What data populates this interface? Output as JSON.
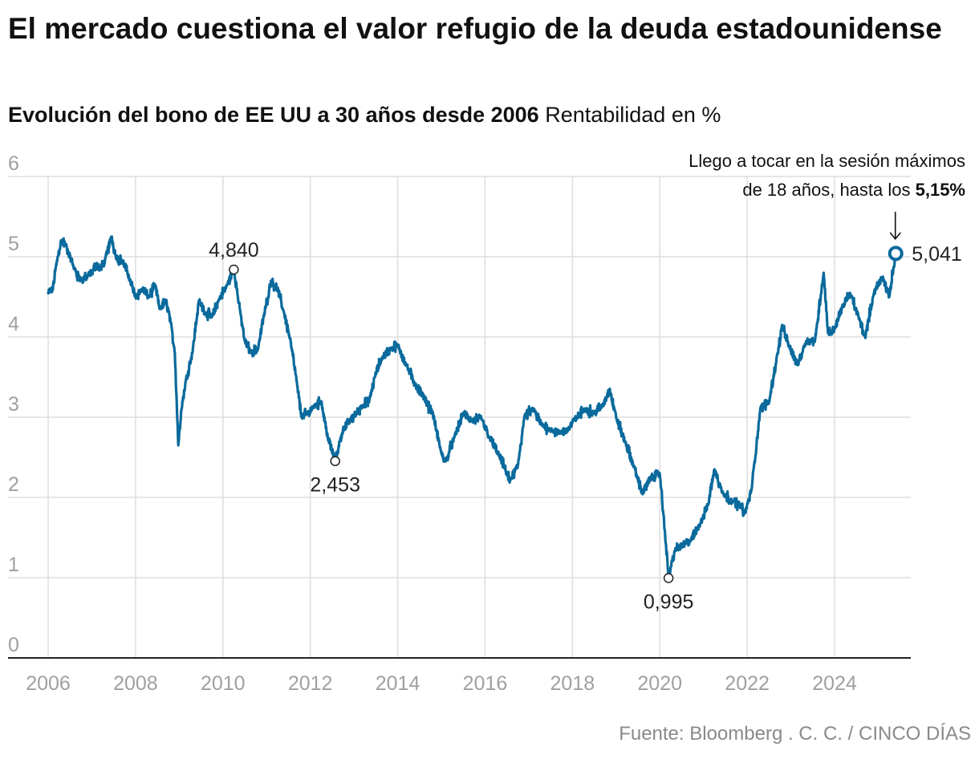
{
  "header": {
    "title": "El mercado cuestiona el valor refugio de la deuda estadounidense",
    "subtitle_bold": "Evolución del bono de EE UU a 30 años desde 2006",
    "subtitle_regular": "Rentabilidad en %"
  },
  "footer": {
    "source": "Fuente: Bloomberg . C. C. / CINCO DÍAS"
  },
  "colors": {
    "line": "#0a6a9c",
    "grid": "#dddddd",
    "axis": "#222222"
  },
  "chart_data": {
    "type": "line",
    "title": "Evolución del bono de EE UU a 30 años desde 2006",
    "ylabel": "Rentabilidad en %",
    "xlabel": "",
    "xlim": [
      2006,
      2025.8
    ],
    "ylim": [
      0,
      6
    ],
    "x_ticks": [
      2006,
      2008,
      2010,
      2012,
      2014,
      2016,
      2018,
      2020,
      2022,
      2024
    ],
    "x_tick_labels": [
      "2006",
      "2008",
      "2010",
      "2012",
      "2014",
      "2016",
      "2018",
      "2020",
      "2022",
      "2024"
    ],
    "y_ticks": [
      0,
      1,
      2,
      3,
      4,
      5,
      6
    ],
    "y_tick_labels": [
      "0",
      "1",
      "2",
      "3",
      "4",
      "5",
      "6"
    ],
    "grid": true,
    "series": [
      {
        "name": "Bono EE UU 30 años",
        "x": [
          2006.0,
          2006.1,
          2006.2,
          2006.3,
          2006.4,
          2006.5,
          2006.6,
          2006.75,
          2006.9,
          2007.0,
          2007.1,
          2007.2,
          2007.3,
          2007.45,
          2007.55,
          2007.7,
          2007.85,
          2008.0,
          2008.15,
          2008.3,
          2008.45,
          2008.55,
          2008.7,
          2008.8,
          2008.9,
          2008.98,
          2009.05,
          2009.15,
          2009.3,
          2009.45,
          2009.6,
          2009.75,
          2009.9,
          2010.1,
          2010.25,
          2010.4,
          2010.5,
          2010.65,
          2010.8,
          2010.95,
          2011.1,
          2011.25,
          2011.4,
          2011.55,
          2011.7,
          2011.8,
          2011.95,
          2012.1,
          2012.25,
          2012.4,
          2012.57,
          2012.75,
          2012.9,
          2013.05,
          2013.2,
          2013.35,
          2013.5,
          2013.65,
          2013.85,
          2014.0,
          2014.2,
          2014.4,
          2014.6,
          2014.8,
          2015.0,
          2015.1,
          2015.3,
          2015.5,
          2015.7,
          2015.9,
          2016.1,
          2016.3,
          2016.5,
          2016.57,
          2016.75,
          2016.9,
          2017.1,
          2017.3,
          2017.5,
          2017.7,
          2017.9,
          2018.1,
          2018.3,
          2018.5,
          2018.7,
          2018.85,
          2019.0,
          2019.2,
          2019.4,
          2019.6,
          2019.8,
          2020.0,
          2020.12,
          2020.2,
          2020.35,
          2020.5,
          2020.7,
          2020.9,
          2021.1,
          2021.25,
          2021.45,
          2021.65,
          2021.85,
          2021.95,
          2022.1,
          2022.3,
          2022.5,
          2022.7,
          2022.8,
          2022.95,
          2023.15,
          2023.35,
          2023.55,
          2023.75,
          2023.85,
          2024.0,
          2024.2,
          2024.35,
          2024.55,
          2024.7,
          2024.9,
          2025.1,
          2025.25,
          2025.4
        ],
        "y": [
          4.55,
          4.58,
          4.95,
          5.2,
          5.15,
          5.0,
          4.85,
          4.7,
          4.75,
          4.8,
          4.9,
          4.85,
          4.95,
          5.25,
          5.0,
          4.95,
          4.75,
          4.5,
          4.6,
          4.5,
          4.65,
          4.35,
          4.45,
          4.2,
          3.8,
          2.65,
          3.1,
          3.45,
          3.8,
          4.45,
          4.3,
          4.25,
          4.45,
          4.65,
          4.84,
          4.3,
          3.95,
          3.8,
          3.85,
          4.3,
          4.7,
          4.6,
          4.3,
          3.95,
          3.4,
          3.0,
          3.05,
          3.15,
          3.2,
          2.75,
          2.453,
          2.85,
          2.95,
          3.05,
          3.15,
          3.2,
          3.55,
          3.75,
          3.85,
          3.9,
          3.65,
          3.4,
          3.25,
          3.05,
          2.55,
          2.45,
          2.75,
          3.05,
          2.95,
          3.0,
          2.75,
          2.55,
          2.3,
          2.2,
          2.4,
          3.0,
          3.1,
          2.9,
          2.85,
          2.8,
          2.85,
          3.0,
          3.1,
          3.05,
          3.15,
          3.35,
          3.0,
          2.7,
          2.4,
          2.05,
          2.25,
          2.3,
          1.55,
          0.995,
          1.35,
          1.4,
          1.45,
          1.65,
          1.9,
          2.35,
          2.05,
          1.95,
          1.9,
          1.8,
          2.1,
          3.1,
          3.2,
          3.8,
          4.15,
          3.9,
          3.65,
          3.95,
          3.95,
          4.8,
          4.05,
          4.1,
          4.4,
          4.55,
          4.25,
          4.0,
          4.55,
          4.75,
          4.5,
          5.041
        ]
      }
    ],
    "annotations": {
      "peak_2010": {
        "x": 2010.25,
        "y": 4.84,
        "label": "4,840"
      },
      "low_2012": {
        "x": 2012.57,
        "y": 2.453,
        "label": "2,453"
      },
      "low_2020": {
        "x": 2020.2,
        "y": 0.995,
        "label": "0,995"
      },
      "last": {
        "x": 2025.4,
        "y": 5.041,
        "label": "5,041"
      },
      "note_line1": "Llego a tocar en la sesión máximos",
      "note_line2_regular": "de 18 años, hasta los ",
      "note_line2_bold": "5,15%"
    }
  }
}
